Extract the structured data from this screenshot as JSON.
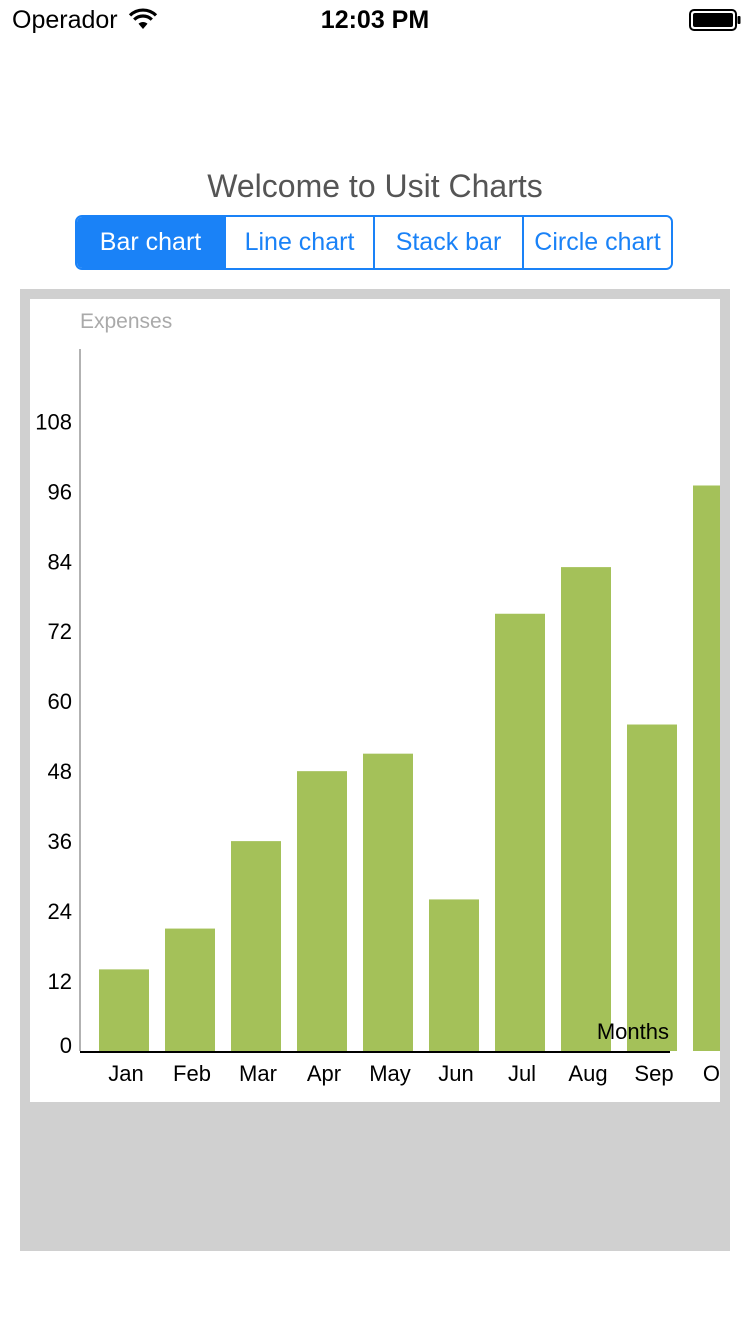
{
  "status_bar": {
    "carrier": "Operador",
    "time": "12:03 PM"
  },
  "title": "Welcome to Usit Charts",
  "tabs": [
    {
      "label": "Bar chart",
      "selected": true
    },
    {
      "label": "Line chart",
      "selected": false
    },
    {
      "label": "Stack bar",
      "selected": false
    },
    {
      "label": "Circle chart",
      "selected": false
    }
  ],
  "colors": {
    "accent": "#1a82f7",
    "bar": "#a4c159",
    "frame": "#d0d0d0"
  },
  "chart_data": {
    "type": "bar",
    "ylabel": "Expenses",
    "xlabel": "Months",
    "categories": [
      "Jan",
      "Feb",
      "Mar",
      "Apr",
      "May",
      "Jun",
      "Jul",
      "Aug",
      "Sep",
      "Oct"
    ],
    "values": [
      14,
      21,
      36,
      48,
      51,
      26,
      75,
      83,
      56,
      97
    ],
    "yticks": [
      0,
      12,
      24,
      36,
      48,
      60,
      72,
      84,
      96,
      108
    ],
    "ylim": [
      0,
      120
    ],
    "grid": false
  }
}
